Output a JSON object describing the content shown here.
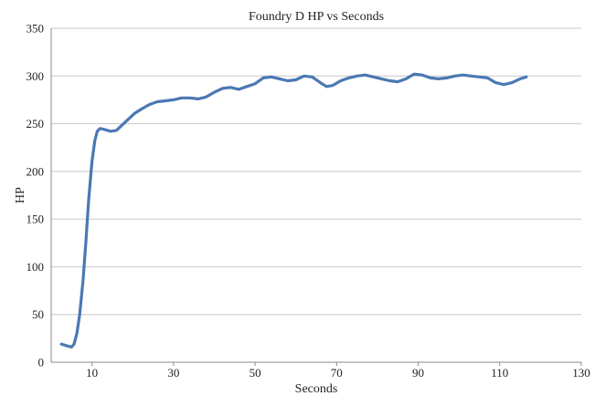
{
  "chart_data": {
    "type": "line",
    "title": "Foundry D HP vs Seconds",
    "xlabel": "Seconds",
    "ylabel": "HP",
    "xlim": [
      0,
      130
    ],
    "ylim": [
      0,
      350
    ],
    "xticks": [
      10,
      30,
      50,
      70,
      90,
      110,
      130
    ],
    "yticks": [
      0,
      50,
      100,
      150,
      200,
      250,
      300,
      350
    ],
    "grid": "horizontal",
    "legend": "none",
    "series": [
      {
        "color": "#4a78b3",
        "points": [
          [
            2.5,
            19
          ],
          [
            4.0,
            17
          ],
          [
            5.0,
            16
          ],
          [
            5.6,
            19
          ],
          [
            6.3,
            30
          ],
          [
            7.0,
            50
          ],
          [
            7.8,
            85
          ],
          [
            8.5,
            125
          ],
          [
            9.2,
            170
          ],
          [
            10.0,
            210
          ],
          [
            10.7,
            232
          ],
          [
            11.3,
            242
          ],
          [
            12.0,
            245
          ],
          [
            13.0,
            244
          ],
          [
            14.5,
            242
          ],
          [
            16.0,
            243
          ],
          [
            17.5,
            249
          ],
          [
            19.0,
            255
          ],
          [
            20.5,
            261
          ],
          [
            22.0,
            265
          ],
          [
            24.0,
            270
          ],
          [
            26.0,
            273
          ],
          [
            28.0,
            274
          ],
          [
            30.0,
            275
          ],
          [
            32.0,
            277
          ],
          [
            34.0,
            277
          ],
          [
            36.0,
            276
          ],
          [
            38.0,
            278
          ],
          [
            40.0,
            283
          ],
          [
            42.0,
            287
          ],
          [
            44.0,
            288
          ],
          [
            46.0,
            286
          ],
          [
            48.0,
            289
          ],
          [
            50.0,
            292
          ],
          [
            52.0,
            298
          ],
          [
            54.0,
            299
          ],
          [
            56.0,
            297
          ],
          [
            58.0,
            295
          ],
          [
            60.0,
            296
          ],
          [
            62.0,
            300
          ],
          [
            64.0,
            299
          ],
          [
            66.0,
            293
          ],
          [
            67.5,
            289
          ],
          [
            69.0,
            290
          ],
          [
            71.0,
            295
          ],
          [
            73.0,
            298
          ],
          [
            75.0,
            300
          ],
          [
            77.0,
            301
          ],
          [
            79.0,
            299
          ],
          [
            81.0,
            297
          ],
          [
            83.0,
            295
          ],
          [
            85.0,
            294
          ],
          [
            87.0,
            297
          ],
          [
            89.0,
            302
          ],
          [
            91.0,
            301
          ],
          [
            93.0,
            298
          ],
          [
            95.0,
            297
          ],
          [
            97.0,
            298
          ],
          [
            99.0,
            300
          ],
          [
            101.0,
            301
          ],
          [
            103.0,
            300
          ],
          [
            105.0,
            299
          ],
          [
            107.0,
            298
          ],
          [
            109.0,
            293
          ],
          [
            111.0,
            291
          ],
          [
            113.0,
            293
          ],
          [
            115.0,
            297
          ],
          [
            116.5,
            299
          ]
        ]
      }
    ]
  }
}
